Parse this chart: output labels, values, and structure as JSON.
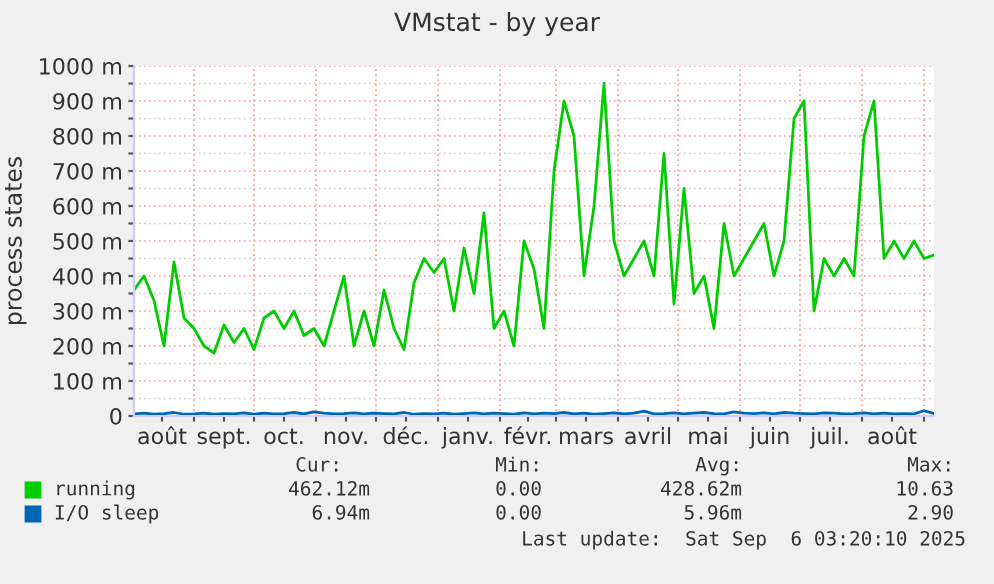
{
  "chart_data": {
    "type": "line",
    "title": "VMstat - by year",
    "ylabel": "process states",
    "x": [
      "2024-08-02",
      "2024-08-07",
      "2024-08-12",
      "2024-08-17",
      "2024-08-22",
      "2024-08-27",
      "2024-09-01",
      "2024-09-06",
      "2024-09-11",
      "2024-09-16",
      "2024-09-21",
      "2024-09-26",
      "2024-10-01",
      "2024-10-06",
      "2024-10-11",
      "2024-10-16",
      "2024-10-21",
      "2024-10-26",
      "2024-10-31",
      "2024-11-05",
      "2024-11-10",
      "2024-11-15",
      "2024-11-20",
      "2024-11-25",
      "2024-11-30",
      "2024-12-05",
      "2024-12-10",
      "2024-12-15",
      "2024-12-20",
      "2024-12-25",
      "2024-12-30",
      "2025-01-04",
      "2025-01-09",
      "2025-01-14",
      "2025-01-19",
      "2025-01-24",
      "2025-01-29",
      "2025-02-03",
      "2025-02-08",
      "2025-02-13",
      "2025-02-18",
      "2025-02-23",
      "2025-02-28",
      "2025-03-05",
      "2025-03-10",
      "2025-03-15",
      "2025-03-20",
      "2025-03-25",
      "2025-03-30",
      "2025-04-04",
      "2025-04-09",
      "2025-04-14",
      "2025-04-19",
      "2025-04-24",
      "2025-04-29",
      "2025-05-04",
      "2025-05-09",
      "2025-05-14",
      "2025-05-19",
      "2025-05-24",
      "2025-05-29",
      "2025-06-03",
      "2025-06-08",
      "2025-06-13",
      "2025-06-18",
      "2025-06-23",
      "2025-06-28",
      "2025-07-03",
      "2025-07-08",
      "2025-07-13",
      "2025-07-18",
      "2025-07-23",
      "2025-07-28",
      "2025-08-02",
      "2025-08-07",
      "2025-08-12",
      "2025-08-17",
      "2025-08-22",
      "2025-08-27",
      "2025-09-01",
      "2025-09-06"
    ],
    "series": [
      {
        "name": "running",
        "color": "#00cc00",
        "values": [
          360,
          400,
          330,
          200,
          440,
          280,
          250,
          200,
          180,
          260,
          210,
          250,
          190,
          280,
          300,
          250,
          300,
          230,
          250,
          200,
          300,
          400,
          200,
          300,
          200,
          360,
          250,
          190,
          380,
          450,
          410,
          450,
          300,
          480,
          350,
          580,
          250,
          300,
          200,
          500,
          420,
          250,
          700,
          900,
          800,
          400,
          600,
          950,
          500,
          400,
          450,
          500,
          400,
          750,
          320,
          650,
          350,
          400,
          250,
          550,
          400,
          450,
          500,
          550,
          400,
          500,
          850,
          900,
          300,
          450,
          400,
          450,
          400,
          800,
          900,
          450,
          500,
          450,
          500,
          450,
          460
        ]
      },
      {
        "name": "I/O sleep",
        "color": "#0066b3",
        "values": [
          6,
          8,
          5,
          7,
          10,
          5,
          6,
          8,
          5,
          7,
          6,
          9,
          5,
          8,
          6,
          7,
          10,
          6,
          12,
          8,
          6,
          7,
          9,
          6,
          8,
          7,
          6,
          10,
          5,
          7,
          6,
          8,
          5,
          7,
          9,
          6,
          8,
          7,
          5,
          9,
          6,
          8,
          7,
          10,
          6,
          8,
          5,
          7,
          9,
          6,
          8,
          14,
          6,
          7,
          9,
          6,
          8,
          10,
          7,
          6,
          12,
          8,
          7,
          9,
          6,
          10,
          8,
          7,
          6,
          9,
          8,
          6,
          7,
          9,
          6,
          8,
          6,
          7,
          6,
          15,
          7
        ]
      }
    ],
    "xlim": [
      "2024-08-02",
      "2025-09-06"
    ],
    "xticks": [
      {
        "value": "2024-08-16",
        "label": "août"
      },
      {
        "value": "2024-09-01",
        "label": null
      },
      {
        "value": "2024-09-16",
        "label": "sept."
      },
      {
        "value": "2024-10-01",
        "label": null
      },
      {
        "value": "2024-10-16",
        "label": "oct."
      },
      {
        "value": "2024-11-01",
        "label": null
      },
      {
        "value": "2024-11-16",
        "label": "nov."
      },
      {
        "value": "2024-12-01",
        "label": null
      },
      {
        "value": "2024-12-16",
        "label": "déc."
      },
      {
        "value": "2025-01-01",
        "label": null
      },
      {
        "value": "2025-01-16",
        "label": "janv."
      },
      {
        "value": "2025-02-01",
        "label": null
      },
      {
        "value": "2025-02-15",
        "label": "févr."
      },
      {
        "value": "2025-03-01",
        "label": null
      },
      {
        "value": "2025-03-16",
        "label": "mars"
      },
      {
        "value": "2025-04-01",
        "label": null
      },
      {
        "value": "2025-04-16",
        "label": "avril"
      },
      {
        "value": "2025-05-01",
        "label": null
      },
      {
        "value": "2025-05-16",
        "label": "mai"
      },
      {
        "value": "2025-06-01",
        "label": null
      },
      {
        "value": "2025-06-16",
        "label": "juin"
      },
      {
        "value": "2025-07-01",
        "label": null
      },
      {
        "value": "2025-07-16",
        "label": "juil."
      },
      {
        "value": "2025-08-01",
        "label": null
      },
      {
        "value": "2025-08-16",
        "label": "août"
      },
      {
        "value": "2025-09-01",
        "label": null
      }
    ],
    "ylim": [
      0,
      1000
    ],
    "yticks": [
      0,
      {
        "value": 50,
        "label": null
      },
      {
        "value": 100,
        "label": "100 m"
      },
      {
        "value": 150,
        "label": null
      },
      {
        "value": 200,
        "label": "200 m"
      },
      {
        "value": 250,
        "label": null
      },
      {
        "value": 300,
        "label": "300 m"
      },
      {
        "value": 350,
        "label": null
      },
      {
        "value": 400,
        "label": "400 m"
      },
      {
        "value": 450,
        "label": null
      },
      {
        "value": 500,
        "label": "500 m"
      },
      {
        "value": 550,
        "label": null
      },
      {
        "value": 600,
        "label": "600 m"
      },
      {
        "value": 650,
        "label": null
      },
      {
        "value": 700,
        "label": "700 m"
      },
      {
        "value": 750,
        "label": null
      },
      {
        "value": 800,
        "label": "800 m"
      },
      {
        "value": 850,
        "label": null
      },
      {
        "value": 900,
        "label": "900 m"
      },
      {
        "value": 950,
        "label": null
      },
      {
        "value": 1000,
        "label": "1000 m"
      }
    ],
    "grid": true,
    "legend": "bottom",
    "marker": "none",
    "line_style": "solid",
    "annotations": [
      "Cur:",
      "Min:",
      "Avg:",
      "Max:",
      "462.12m",
      "0.00",
      "428.62m",
      "10.63",
      "6.94m",
      "0.00",
      "5.96m",
      "2.90",
      "Last update:  Sat Sep  6 03:20:10 2025"
    ]
  }
}
